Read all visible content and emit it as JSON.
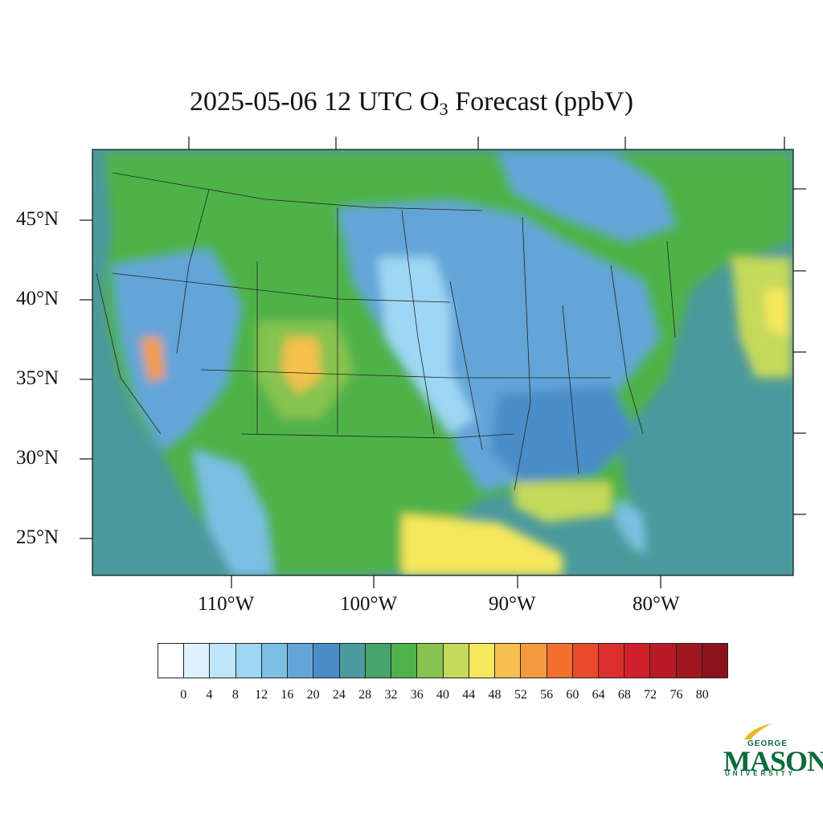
{
  "title": {
    "prefix": "2025-05-06 12 UTC O",
    "sub": "3",
    "suffix": " Forecast (ppbV)"
  },
  "lat_labels": [
    "45°N",
    "40°N",
    "35°N",
    "30°N",
    "25°N"
  ],
  "lon_labels": [
    "110°W",
    "100°W",
    "90°W",
    "80°W"
  ],
  "colorbar": {
    "colors": [
      "#ffffff",
      "#dff1fb",
      "#bfe6f8",
      "#9dd7f3",
      "#7cbfe3",
      "#64a5d8",
      "#4a8cc7",
      "#4b9a9d",
      "#46a36b",
      "#4fb24a",
      "#86c34f",
      "#c5d95a",
      "#f6e85c",
      "#f6c04c",
      "#f59a3f",
      "#f26f2e",
      "#e84a2b",
      "#dc2e2c",
      "#d21f2c",
      "#b81a26",
      "#a11720",
      "#8b131b"
    ],
    "tick_labels": [
      "0",
      "4",
      "8",
      "12",
      "16",
      "20",
      "24",
      "28",
      "32",
      "36",
      "40",
      "44",
      "48",
      "52",
      "56",
      "60",
      "64",
      "68",
      "72",
      "76",
      "80"
    ]
  },
  "logo": {
    "line1": "GEORGE",
    "line2": "MASON",
    "line3": "UNIVERSITY"
  }
}
